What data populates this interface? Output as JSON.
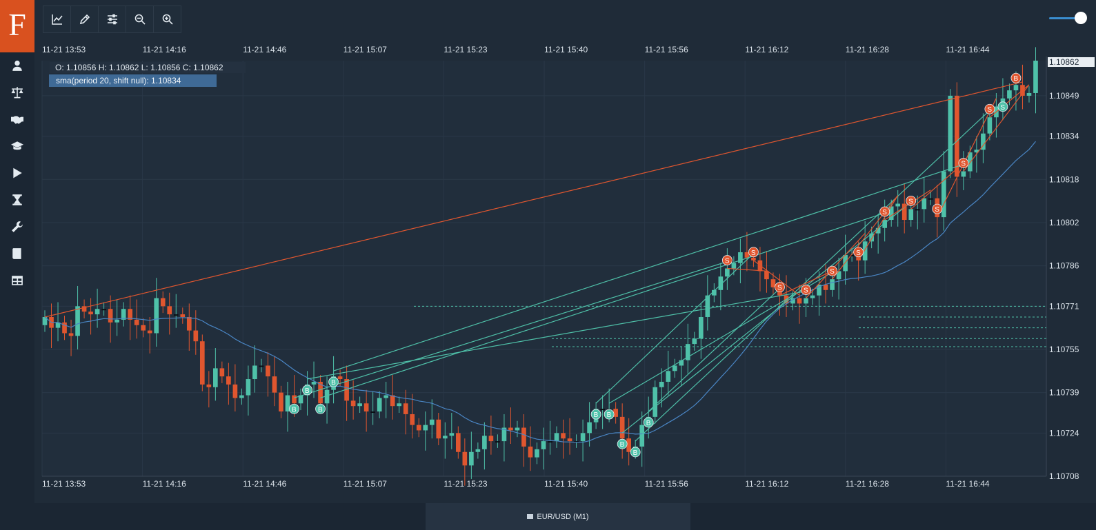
{
  "app": {
    "logo_letter": "F"
  },
  "sidebar": {
    "items": [
      {
        "icon": "user-icon"
      },
      {
        "icon": "balance-scale-icon"
      },
      {
        "icon": "handshake-icon"
      },
      {
        "icon": "graduation-cap-icon"
      },
      {
        "icon": "play-icon"
      },
      {
        "icon": "hourglass-icon"
      },
      {
        "icon": "wrench-icon"
      },
      {
        "icon": "book-icon"
      },
      {
        "icon": "table-icon"
      }
    ]
  },
  "toolbar": {
    "buttons": [
      {
        "icon": "chart-line-icon"
      },
      {
        "icon": "pencil-icon"
      },
      {
        "icon": "sliders-icon"
      },
      {
        "icon": "zoom-out-icon"
      },
      {
        "icon": "zoom-in-icon"
      }
    ]
  },
  "zoom_slider": {
    "value": 0.9
  },
  "time_axis": [
    "11-21 13:53",
    "11-21 14:16",
    "11-21 14:46",
    "11-21 15:07",
    "11-21 15:23",
    "11-21 15:40",
    "11-21 15:56",
    "11-21 16:12",
    "11-21 16:28",
    "11-21 16:44"
  ],
  "price_axis": [
    "1.10849",
    "1.10834",
    "1.10818",
    "1.10802",
    "1.10786",
    "1.10771",
    "1.10755",
    "1.10739",
    "1.10724",
    "1.10708"
  ],
  "current_price": "1.10862",
  "ohlc_text": "O: 1.10856 H: 1.10862 L: 1.10856 C: 1.10862",
  "sma_text": "sma(period 20, shift null): 1.10834",
  "footer": {
    "symbol": "EUR/USD (M1)"
  },
  "colors": {
    "bull": "#4fc1a9",
    "bear": "#e0562f",
    "sma": "#4a86c5",
    "accent": "#d9511f"
  },
  "chart_data": {
    "type": "candlestick",
    "symbol": "EUR/USD",
    "timeframe": "M1",
    "x_range": [
      "11-21 13:53",
      "11-21 16:51"
    ],
    "y_range": [
      1.10708,
      1.10862
    ],
    "closes": [
      1.10767,
      1.10763,
      1.10765,
      1.10761,
      1.1076,
      1.10771,
      1.10769,
      1.10768,
      1.1077,
      1.1077,
      1.10765,
      1.10766,
      1.1077,
      1.10766,
      1.10764,
      1.10762,
      1.10761,
      1.10774,
      1.10771,
      1.10768,
      1.10768,
      1.10767,
      1.10762,
      1.10758,
      1.10742,
      1.10741,
      1.10748,
      1.10745,
      1.10742,
      1.10737,
      1.10738,
      1.10744,
      1.10749,
      1.10749,
      1.10745,
      1.10739,
      1.10732,
      1.10738,
      1.10735,
      1.10738,
      1.10742,
      1.10743,
      1.10735,
      1.1074,
      1.10745,
      1.10744,
      1.10736,
      1.10734,
      1.10735,
      1.10732,
      1.10732,
      1.10737,
      1.10738,
      1.10734,
      1.10735,
      1.10731,
      1.10727,
      1.10725,
      1.10727,
      1.10729,
      1.10722,
      1.10723,
      1.10724,
      1.10717,
      1.10712,
      1.10717,
      1.10718,
      1.10723,
      1.10721,
      1.10721,
      1.10726,
      1.10725,
      1.10726,
      1.10719,
      1.10715,
      1.10718,
      1.10721,
      1.10721,
      1.10724,
      1.10722,
      1.10721,
      1.10721,
      1.10724,
      1.10728,
      1.10733,
      1.10733,
      1.10733,
      1.1073,
      1.10722,
      1.10717,
      1.10719,
      1.10727,
      1.1073,
      1.10741,
      1.10743,
      1.10747,
      1.10749,
      1.10751,
      1.10757,
      1.10759,
      1.10767,
      1.10775,
      1.10777,
      1.10782,
      1.10785,
      1.10787,
      1.10791,
      1.10789,
      1.10788,
      1.10784,
      1.10781,
      1.10778,
      1.10775,
      1.10772,
      1.10774,
      1.10772,
      1.10774,
      1.10775,
      1.10779,
      1.10777,
      1.10781,
      1.10784,
      1.1079,
      1.1079,
      1.10788,
      1.10795,
      1.10798,
      1.108,
      1.10803,
      1.10808,
      1.10809,
      1.10803,
      1.10807,
      1.10807,
      1.10811,
      1.10811,
      1.10804,
      1.10821,
      1.10849,
      1.10819,
      1.10821,
      1.10828,
      1.10829,
      1.10835,
      1.10841,
      1.10845,
      1.10848,
      1.10851,
      1.10853,
      1.10849,
      1.1085,
      1.10862
    ],
    "sma_period": 20,
    "sma_last": 1.10834,
    "trade_markers": "B = buy, S = sell"
  }
}
